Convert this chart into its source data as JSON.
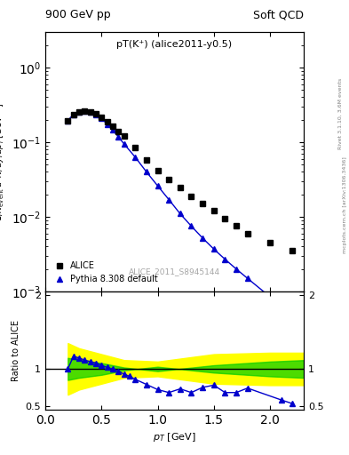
{
  "title_left": "900 GeV pp",
  "title_right": "Soft QCD",
  "plot_label": "pT(K⁺) (alice2011-y0.5)",
  "watermark": "ALICE_2011_S8945144",
  "right_label": "Rivet 3.1.10, 3.6M events",
  "right_label2": "mcplots.cern.ch [arXiv:1306.3436]",
  "xlabel": "p_{T} [GeV]",
  "ylabel_main": "1/N_{event} d^{2}N/dy/dp_{T} [GeV^{-1}]",
  "ylabel_ratio": "Ratio to ALICE",
  "alice_x": [
    0.2,
    0.25,
    0.3,
    0.35,
    0.4,
    0.45,
    0.5,
    0.55,
    0.6,
    0.65,
    0.7,
    0.8,
    0.9,
    1.0,
    1.1,
    1.2,
    1.3,
    1.4,
    1.5,
    1.6,
    1.7,
    1.8,
    2.0,
    2.2
  ],
  "alice_y": [
    0.195,
    0.235,
    0.255,
    0.26,
    0.255,
    0.24,
    0.215,
    0.19,
    0.165,
    0.14,
    0.12,
    0.085,
    0.058,
    0.042,
    0.032,
    0.025,
    0.019,
    0.015,
    0.012,
    0.0095,
    0.0075,
    0.006,
    0.0045,
    0.0035
  ],
  "pythia_x": [
    0.2,
    0.25,
    0.3,
    0.35,
    0.4,
    0.45,
    0.5,
    0.55,
    0.6,
    0.65,
    0.7,
    0.8,
    0.9,
    1.0,
    1.1,
    1.2,
    1.3,
    1.4,
    1.5,
    1.6,
    1.7,
    1.8,
    2.0,
    2.15,
    2.25
  ],
  "pythia_y": [
    0.195,
    0.235,
    0.255,
    0.258,
    0.252,
    0.235,
    0.207,
    0.175,
    0.145,
    0.118,
    0.095,
    0.063,
    0.04,
    0.026,
    0.017,
    0.011,
    0.0075,
    0.0052,
    0.0037,
    0.0027,
    0.002,
    0.0015,
    0.00085,
    0.00048,
    0.00032
  ],
  "ratio_x": [
    0.2,
    0.25,
    0.3,
    0.35,
    0.4,
    0.45,
    0.5,
    0.55,
    0.6,
    0.65,
    0.7,
    0.75,
    0.8,
    0.9,
    1.0,
    1.1,
    1.2,
    1.3,
    1.4,
    1.5,
    1.6,
    1.7,
    1.8,
    2.1,
    2.2
  ],
  "ratio_y": [
    1.0,
    1.17,
    1.15,
    1.12,
    1.1,
    1.08,
    1.05,
    1.02,
    1.0,
    0.97,
    0.93,
    0.9,
    0.86,
    0.79,
    0.72,
    0.68,
    0.73,
    0.68,
    0.75,
    0.78,
    0.68,
    0.68,
    0.74,
    0.58,
    0.53
  ],
  "band_x": [
    0.2,
    0.3,
    0.5,
    0.7,
    1.0,
    1.5,
    2.0,
    2.3
  ],
  "green_upper": [
    1.15,
    1.12,
    1.08,
    1.02,
    0.97,
    1.05,
    1.1,
    1.12
  ],
  "green_lower": [
    0.85,
    0.88,
    0.92,
    0.98,
    1.03,
    0.95,
    0.9,
    0.88
  ],
  "yellow_upper": [
    1.35,
    1.28,
    1.2,
    1.12,
    1.1,
    1.2,
    1.22,
    1.22
  ],
  "yellow_lower": [
    0.65,
    0.72,
    0.8,
    0.88,
    0.9,
    0.8,
    0.78,
    0.78
  ],
  "xlim": [
    0.0,
    2.3
  ],
  "ylim_main": [
    0.001,
    3
  ],
  "ylim_ratio": [
    0.45,
    2.05
  ],
  "line_color": "#0000cc",
  "alice_color": "#000000",
  "green_color": "#00cc00",
  "yellow_color": "#ffff00"
}
